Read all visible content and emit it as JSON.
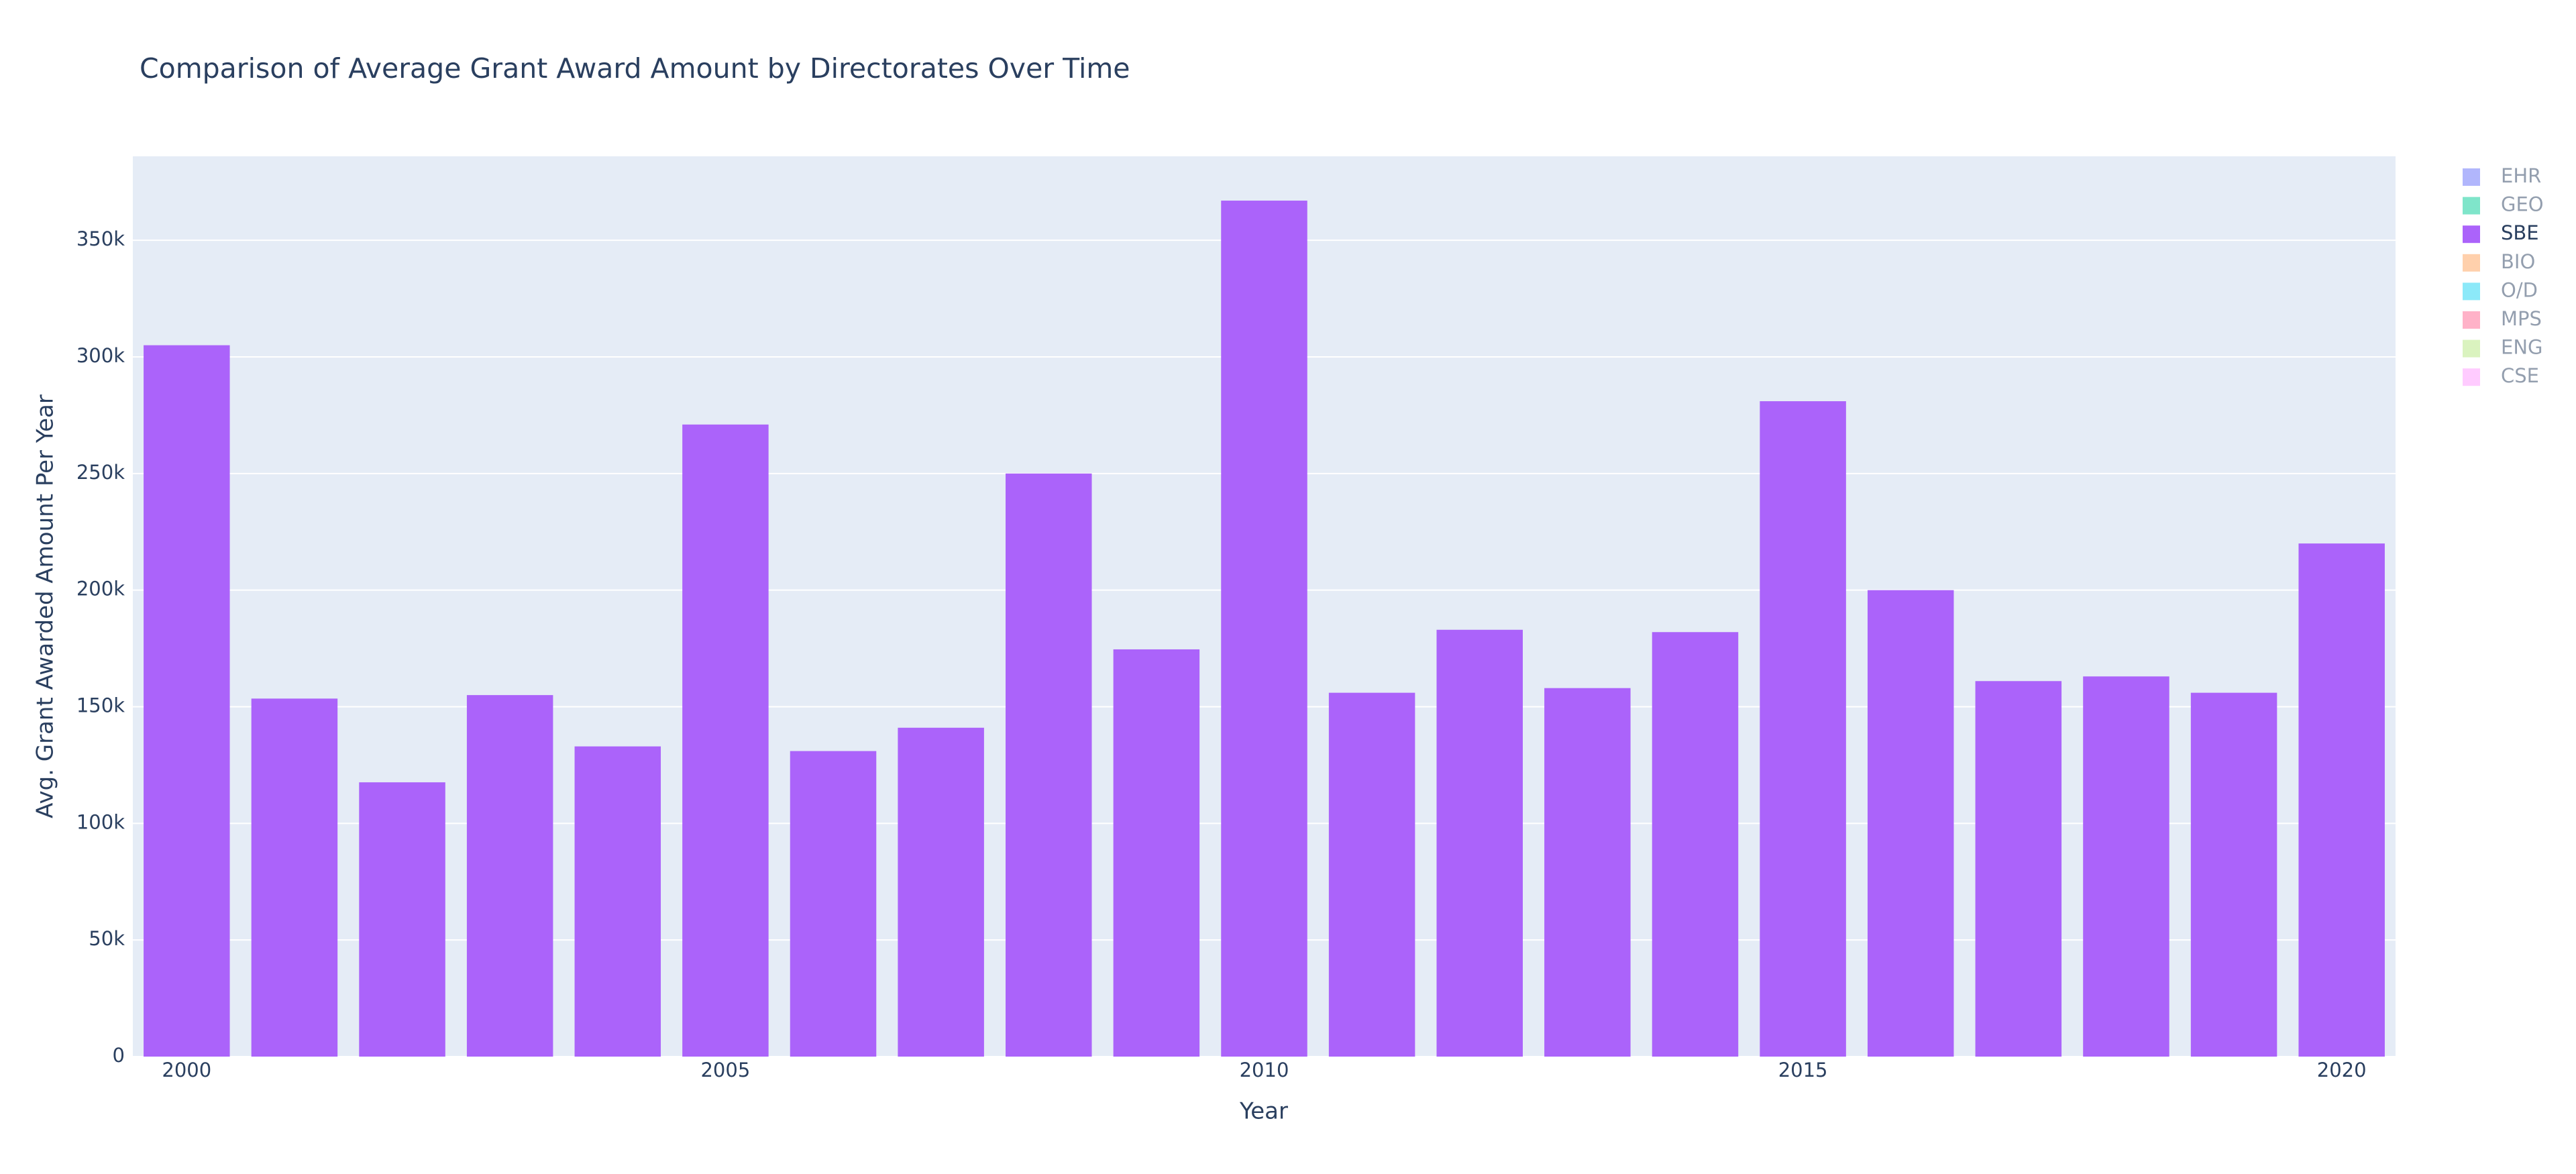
{
  "chart_data": {
    "type": "bar",
    "title": "Comparison of Average Grant Award Amount by Directorates Over Time",
    "xlabel": "Year",
    "ylabel": "Avg. Grant Awarded Amount Per Year",
    "x": [
      2000,
      2001,
      2002,
      2003,
      2004,
      2005,
      2006,
      2007,
      2008,
      2009,
      2010,
      2011,
      2012,
      2013,
      2014,
      2015,
      2016,
      2017,
      2018,
      2019,
      2020
    ],
    "series": [
      {
        "name": "EHR",
        "color": "#636efa",
        "visible": false
      },
      {
        "name": "GEO",
        "color": "#00cc96",
        "visible": false
      },
      {
        "name": "SBE",
        "color": "#ab63fa",
        "visible": true,
        "values": [
          305000,
          153500,
          117600,
          155000,
          133000,
          271000,
          131000,
          141000,
          250000,
          174600,
          367000,
          156000,
          183000,
          158000,
          182000,
          281000,
          200000,
          161000,
          163000,
          156000,
          220000
        ]
      },
      {
        "name": "BIO",
        "color": "#FFA15A",
        "visible": false
      },
      {
        "name": "O/D",
        "color": "#19d3f3",
        "visible": false
      },
      {
        "name": "MPS",
        "color": "#FF6692",
        "visible": false
      },
      {
        "name": "ENG",
        "color": "#B6E880",
        "visible": false
      },
      {
        "name": "CSE",
        "color": "#FF97FF",
        "visible": false
      }
    ],
    "xlim": [
      1999.5,
      2020.5
    ],
    "xticks": [
      2000,
      2005,
      2010,
      2015,
      2020
    ],
    "ylim": [
      0,
      386000
    ],
    "yticks": [
      0,
      {
        "value": 50000,
        "label": "50k"
      },
      {
        "value": 100000,
        "label": "100k"
      },
      {
        "value": 150000,
        "label": "150k"
      },
      {
        "value": 200000,
        "label": "200k"
      },
      {
        "value": 250000,
        "label": "250k"
      },
      {
        "value": 300000,
        "label": "300k"
      },
      {
        "value": 350000,
        "label": "350k"
      }
    ],
    "grid": true,
    "plot_bgcolor": "#e5ecf6",
    "legend": "top-right"
  }
}
